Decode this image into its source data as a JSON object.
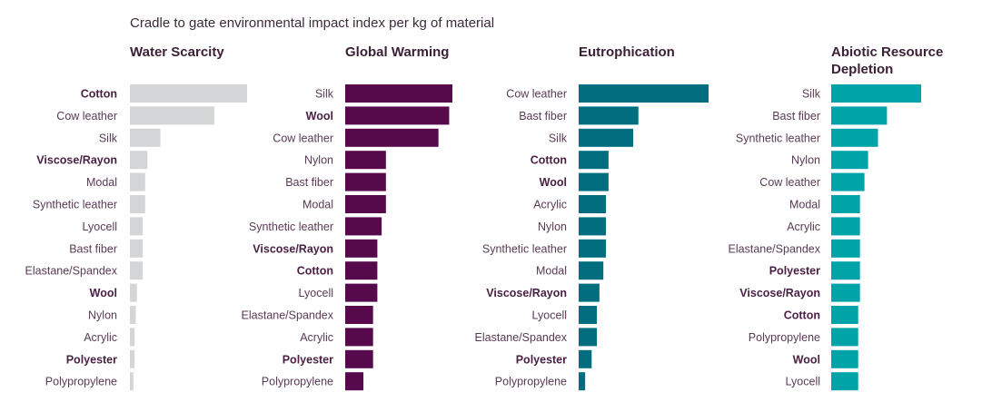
{
  "title": "Cradle to gate environmental impact index per kg of material",
  "chart_data": [
    {
      "type": "bar",
      "title": "Water Scarcity",
      "color": "#d4d5d6",
      "categories": [
        "Cotton",
        "Cow leather",
        "Silk",
        "Viscose/Rayon",
        "Modal",
        "Synthetic leather",
        "Lyocell",
        "Bast fiber",
        "Elastane/Spandex",
        "Wool",
        "Nylon",
        "Acrylic",
        "Polyester",
        "Polypropylene"
      ],
      "highlighted": [
        "Cotton",
        "Viscose/Rayon",
        "Wool",
        "Polyester"
      ],
      "values": [
        100,
        72,
        26,
        15,
        13,
        13,
        11,
        11,
        11,
        6,
        5,
        4,
        4,
        3
      ],
      "xlim": [
        0,
        100
      ]
    },
    {
      "type": "bar",
      "title": "Global Warming",
      "color": "#560a4b",
      "categories": [
        "Silk",
        "Wool",
        "Cow leather",
        "Nylon",
        "Bast fiber",
        "Modal",
        "Synthetic leather",
        "Viscose/Rayon",
        "Cotton",
        "Lyocell",
        "Elastane/Spandex",
        "Acrylic",
        "Polyester",
        "Polypropylene"
      ],
      "highlighted": [
        "Wool",
        "Viscose/Rayon",
        "Cotton",
        "Polyester"
      ],
      "values": [
        100,
        97,
        87,
        38,
        38,
        38,
        34,
        30,
        30,
        30,
        26,
        26,
        26,
        17
      ],
      "xlim": [
        0,
        100
      ]
    },
    {
      "type": "bar",
      "title": "Eutrophication",
      "color": "#006e7f",
      "categories": [
        "Cow leather",
        "Bast fiber",
        "Silk",
        "Cotton",
        "Wool",
        "Acrylic",
        "Nylon",
        "Synthetic leather",
        "Modal",
        "Viscose/Rayon",
        "Lyocell",
        "Elastane/Spandex",
        "Polyester",
        "Polypropylene"
      ],
      "highlighted": [
        "Cotton",
        "Wool",
        "Viscose/Rayon",
        "Polyester"
      ],
      "values": [
        100,
        46,
        42,
        23,
        23,
        21,
        21,
        21,
        19,
        16,
        14,
        14,
        10,
        5
      ],
      "xlim": [
        0,
        100
      ]
    },
    {
      "type": "bar",
      "title": "Abiotic Resource Depletion",
      "color": "#00a3a8",
      "categories": [
        "Silk",
        "Bast fiber",
        "Synthetic leather",
        "Nylon",
        "Cow leather",
        "Modal",
        "Acrylic",
        "Elastane/Spandex",
        "Polyester",
        "Viscose/Rayon",
        "Cotton",
        "Polypropylene",
        "Wool",
        "Lyocell"
      ],
      "highlighted": [
        "Polyester",
        "Viscose/Rayon",
        "Cotton",
        "Wool"
      ],
      "values": [
        100,
        62,
        52,
        41,
        37,
        32,
        32,
        32,
        32,
        32,
        30,
        30,
        30,
        30
      ],
      "xlim": [
        0,
        100
      ]
    }
  ]
}
